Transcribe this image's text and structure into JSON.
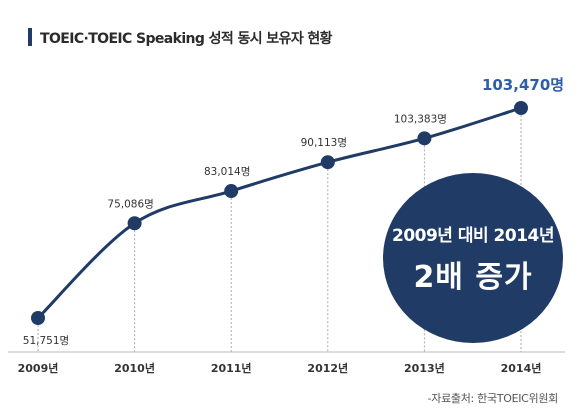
{
  "title": "TOEIC·TOEIC Speaking 성적 동시 보유자 현황",
  "source": "-자료출처: 한국TOEIC위원회",
  "callout": {
    "line1": "2009년 대비 2014년",
    "line2": "2배 증가"
  },
  "colors": {
    "line": "#1f3b66",
    "marker": "#1f3b66",
    "highlight_label": "#2e5fa6",
    "callout_bg": "#1f3b66"
  },
  "chart_data": {
    "type": "line",
    "categories": [
      "2009년",
      "2010년",
      "2011년",
      "2012년",
      "2013년",
      "2014년"
    ],
    "values": [
      51751,
      75086,
      83014,
      90113,
      103383,
      103470
    ],
    "data_labels": [
      "51,751명",
      "75,086명",
      "83,014명",
      "90,113명",
      "103,383명",
      "103,470명"
    ],
    "highlight_index": 5,
    "title": "TOEIC·TOEIC Speaking 성적 동시 보유자 현황",
    "xlabel": "",
    "ylabel": "",
    "grid": "vertical dotted guide lines at each point",
    "legend": "none"
  }
}
